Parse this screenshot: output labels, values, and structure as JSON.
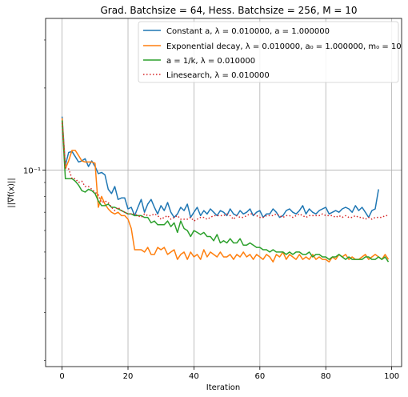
{
  "chart_data": {
    "type": "line",
    "title": "Grad. Batchsize = 64, Hess. Batchsize = 256, M = 10",
    "xlabel": "Iteration",
    "ylabel": "||∇f(x)||",
    "xlim": [
      -5,
      103
    ],
    "ylim": [
      0.019,
      0.36
    ],
    "yscale": "log",
    "xticks": [
      0,
      20,
      40,
      60,
      80,
      100
    ],
    "xtick_labels": [
      "0",
      "20",
      "40",
      "60",
      "80",
      "100"
    ],
    "yticks": [
      0.1
    ],
    "ytick_labels": [
      "10⁻¹"
    ],
    "grid": true,
    "legend_position": "upper-right",
    "series": [
      {
        "name": "Constant a, λ = 0.010000, a = 1.000000",
        "color": "#1f77b4",
        "dash": "solid",
        "x": [
          0,
          1,
          2,
          3,
          4,
          5,
          6,
          7,
          8,
          9,
          10,
          11,
          12,
          13,
          14,
          15,
          16,
          17,
          18,
          19,
          20,
          21,
          22,
          23,
          24,
          25,
          26,
          27,
          28,
          29,
          30,
          31,
          32,
          33,
          34,
          35,
          36,
          37,
          38,
          39,
          40,
          41,
          42,
          43,
          44,
          45,
          46,
          47,
          48,
          49,
          50,
          51,
          52,
          53,
          54,
          55,
          56,
          57,
          58,
          59,
          60,
          61,
          62,
          63,
          64,
          65,
          66,
          67,
          68,
          69,
          70,
          71,
          72,
          73,
          74,
          75,
          76,
          77,
          78,
          79,
          80,
          81,
          82,
          83,
          84,
          85,
          86,
          87,
          88,
          89,
          90,
          91,
          92,
          93,
          94,
          95,
          96
        ],
        "y": [
          0.157,
          0.104,
          0.116,
          0.117,
          0.112,
          0.107,
          0.108,
          0.11,
          0.103,
          0.108,
          0.103,
          0.097,
          0.098,
          0.096,
          0.085,
          0.082,
          0.087,
          0.078,
          0.079,
          0.079,
          0.072,
          0.073,
          0.068,
          0.073,
          0.078,
          0.07,
          0.075,
          0.078,
          0.073,
          0.069,
          0.074,
          0.071,
          0.076,
          0.07,
          0.067,
          0.069,
          0.073,
          0.071,
          0.075,
          0.067,
          0.07,
          0.073,
          0.068,
          0.071,
          0.069,
          0.072,
          0.07,
          0.068,
          0.071,
          0.07,
          0.068,
          0.072,
          0.069,
          0.068,
          0.071,
          0.069,
          0.07,
          0.072,
          0.068,
          0.07,
          0.071,
          0.067,
          0.069,
          0.069,
          0.072,
          0.07,
          0.067,
          0.068,
          0.071,
          0.072,
          0.07,
          0.069,
          0.071,
          0.074,
          0.069,
          0.072,
          0.07,
          0.069,
          0.071,
          0.072,
          0.073,
          0.069,
          0.07,
          0.071,
          0.07,
          0.072,
          0.073,
          0.072,
          0.07,
          0.074,
          0.071,
          0.073,
          0.07,
          0.067,
          0.071,
          0.072,
          0.085
        ]
      },
      {
        "name": "Exponential decay, λ = 0.010000, a₀ = 1.000000, m₀ = 10",
        "color": "#ff7f0e",
        "dash": "solid",
        "x": [
          0,
          1,
          2,
          3,
          4,
          5,
          6,
          7,
          8,
          9,
          10,
          11,
          12,
          13,
          14,
          15,
          16,
          17,
          18,
          19,
          20,
          21,
          22,
          23,
          24,
          25,
          26,
          27,
          28,
          29,
          30,
          31,
          32,
          33,
          34,
          35,
          36,
          37,
          38,
          39,
          40,
          41,
          42,
          43,
          44,
          45,
          46,
          47,
          48,
          49,
          50,
          51,
          52,
          53,
          54,
          55,
          56,
          57,
          58,
          59,
          60,
          61,
          62,
          63,
          64,
          65,
          66,
          67,
          68,
          69,
          70,
          71,
          72,
          73,
          74,
          75,
          76,
          77,
          78,
          79,
          80,
          81,
          82,
          83,
          84,
          85,
          86,
          87,
          88,
          89,
          90,
          91,
          92,
          93,
          94,
          95,
          96,
          97,
          98,
          99
        ],
        "y": [
          0.155,
          0.101,
          0.108,
          0.118,
          0.118,
          0.113,
          0.108,
          0.107,
          0.107,
          0.107,
          0.106,
          0.073,
          0.08,
          0.075,
          0.072,
          0.07,
          0.069,
          0.07,
          0.068,
          0.068,
          0.066,
          0.061,
          0.051,
          0.051,
          0.051,
          0.05,
          0.052,
          0.049,
          0.049,
          0.052,
          0.051,
          0.052,
          0.049,
          0.05,
          0.051,
          0.047,
          0.049,
          0.05,
          0.047,
          0.05,
          0.048,
          0.049,
          0.047,
          0.051,
          0.048,
          0.05,
          0.049,
          0.048,
          0.05,
          0.048,
          0.048,
          0.049,
          0.047,
          0.049,
          0.048,
          0.05,
          0.048,
          0.049,
          0.047,
          0.049,
          0.048,
          0.047,
          0.049,
          0.048,
          0.046,
          0.049,
          0.048,
          0.05,
          0.047,
          0.049,
          0.048,
          0.047,
          0.049,
          0.047,
          0.048,
          0.047,
          0.049,
          0.047,
          0.048,
          0.047,
          0.047,
          0.046,
          0.048,
          0.047,
          0.049,
          0.048,
          0.049,
          0.047,
          0.048,
          0.047,
          0.047,
          0.048,
          0.049,
          0.047,
          0.048,
          0.049,
          0.048,
          0.047,
          0.049,
          0.047
        ]
      },
      {
        "name": "a = 1/k, λ = 0.010000",
        "color": "#2ca02c",
        "dash": "solid",
        "x": [
          0,
          1,
          2,
          3,
          4,
          5,
          6,
          7,
          8,
          9,
          10,
          11,
          12,
          13,
          14,
          15,
          16,
          17,
          18,
          19,
          20,
          21,
          22,
          23,
          24,
          25,
          26,
          27,
          28,
          29,
          30,
          31,
          32,
          33,
          34,
          35,
          36,
          37,
          38,
          39,
          40,
          41,
          42,
          43,
          44,
          45,
          46,
          47,
          48,
          49,
          50,
          51,
          52,
          53,
          54,
          55,
          56,
          57,
          58,
          59,
          60,
          61,
          62,
          63,
          64,
          65,
          66,
          67,
          68,
          69,
          70,
          71,
          72,
          73,
          74,
          75,
          76,
          77,
          78,
          79,
          80,
          81,
          82,
          83,
          84,
          85,
          86,
          87,
          88,
          89,
          90,
          91,
          92,
          93,
          94,
          95,
          96,
          97,
          98,
          99
        ],
        "y": [
          0.152,
          0.093,
          0.093,
          0.093,
          0.091,
          0.088,
          0.084,
          0.083,
          0.085,
          0.084,
          0.082,
          0.077,
          0.074,
          0.074,
          0.075,
          0.073,
          0.073,
          0.072,
          0.071,
          0.07,
          0.069,
          0.069,
          0.068,
          0.068,
          0.068,
          0.067,
          0.067,
          0.064,
          0.065,
          0.063,
          0.063,
          0.063,
          0.065,
          0.062,
          0.064,
          0.059,
          0.065,
          0.061,
          0.06,
          0.057,
          0.06,
          0.059,
          0.058,
          0.059,
          0.057,
          0.057,
          0.055,
          0.058,
          0.054,
          0.055,
          0.054,
          0.056,
          0.054,
          0.054,
          0.056,
          0.053,
          0.053,
          0.054,
          0.053,
          0.052,
          0.052,
          0.051,
          0.051,
          0.05,
          0.051,
          0.05,
          0.05,
          0.05,
          0.049,
          0.05,
          0.049,
          0.05,
          0.05,
          0.049,
          0.049,
          0.05,
          0.048,
          0.049,
          0.049,
          0.048,
          0.048,
          0.047,
          0.048,
          0.048,
          0.049,
          0.048,
          0.047,
          0.048,
          0.047,
          0.047,
          0.047,
          0.047,
          0.048,
          0.048,
          0.047,
          0.047,
          0.048,
          0.047,
          0.048,
          0.046
        ]
      },
      {
        "name": "Linesearch, λ = 0.010000",
        "color": "#d62728",
        "dash": "dotted",
        "x": [
          0,
          1,
          2,
          3,
          4,
          5,
          6,
          7,
          8,
          9,
          10,
          11,
          12,
          13,
          14,
          15,
          16,
          17,
          18,
          19,
          20,
          21,
          22,
          23,
          24,
          25,
          26,
          27,
          28,
          29,
          30,
          31,
          32,
          33,
          34,
          35,
          36,
          37,
          38,
          39,
          40,
          41,
          42,
          43,
          44,
          45,
          46,
          47,
          48,
          49,
          50,
          51,
          52,
          53,
          54,
          55,
          56,
          57,
          58,
          59,
          60,
          61,
          62,
          63,
          64,
          65,
          66,
          67,
          68,
          69,
          70,
          71,
          72,
          73,
          74,
          75,
          76,
          77,
          78,
          79,
          80,
          81,
          82,
          83,
          84,
          85,
          86,
          87,
          88,
          89,
          90,
          91,
          92,
          93,
          94,
          95,
          96,
          97,
          98,
          99
        ],
        "y": [
          0.149,
          0.102,
          0.101,
          0.093,
          0.093,
          0.09,
          0.091,
          0.087,
          0.087,
          0.085,
          0.083,
          0.081,
          0.076,
          0.077,
          0.076,
          0.073,
          0.071,
          0.073,
          0.071,
          0.07,
          0.069,
          0.069,
          0.069,
          0.068,
          0.067,
          0.069,
          0.068,
          0.068,
          0.069,
          0.068,
          0.066,
          0.067,
          0.068,
          0.066,
          0.067,
          0.068,
          0.066,
          0.066,
          0.066,
          0.067,
          0.065,
          0.066,
          0.067,
          0.067,
          0.066,
          0.067,
          0.068,
          0.068,
          0.068,
          0.068,
          0.069,
          0.068,
          0.066,
          0.068,
          0.067,
          0.067,
          0.068,
          0.069,
          0.069,
          0.068,
          0.067,
          0.067,
          0.068,
          0.068,
          0.068,
          0.069,
          0.068,
          0.067,
          0.068,
          0.068,
          0.067,
          0.068,
          0.069,
          0.068,
          0.067,
          0.068,
          0.068,
          0.068,
          0.068,
          0.069,
          0.068,
          0.068,
          0.068,
          0.067,
          0.068,
          0.067,
          0.068,
          0.067,
          0.067,
          0.068,
          0.067,
          0.067,
          0.066,
          0.067,
          0.066,
          0.067,
          0.067,
          0.067,
          0.068,
          0.068
        ]
      }
    ]
  }
}
